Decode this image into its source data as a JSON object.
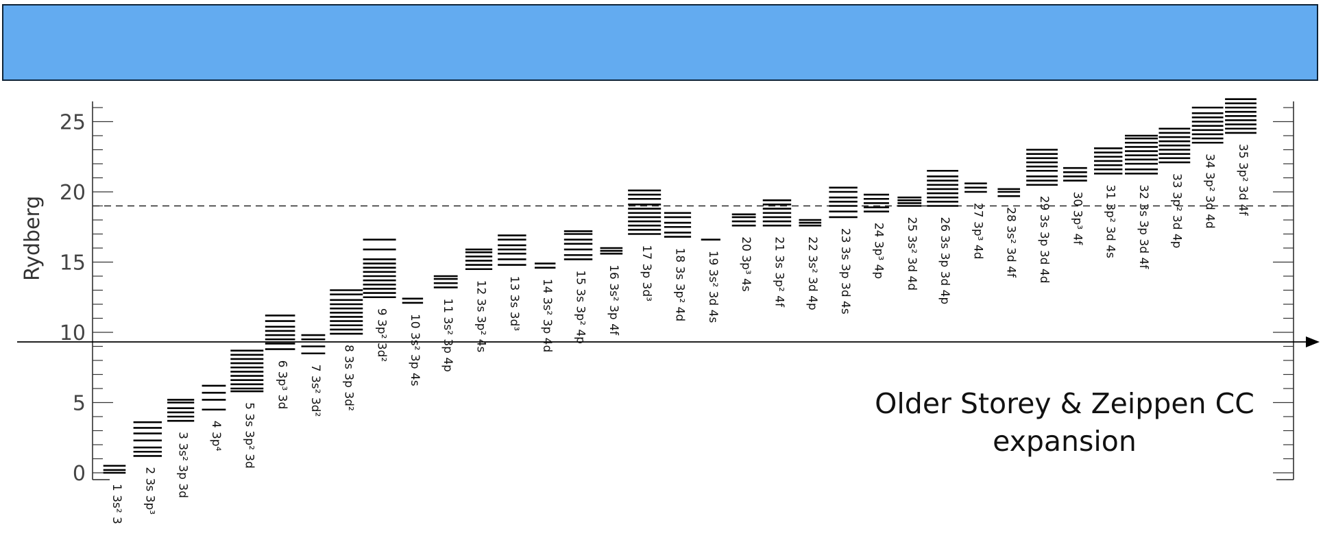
{
  "chart_data": {
    "type": "bar",
    "ylabel": "Rydberg",
    "ylim": [
      -0.5,
      26.5
    ],
    "yticks": [
      0,
      5,
      10,
      15,
      20,
      25
    ],
    "dashed_line_y": 19.0,
    "annotation": [
      "Older Storey & Zeippen CC",
      "expansion"
    ],
    "colors": {
      "banner": "#63abf0",
      "levels": "#000000"
    },
    "configurations": [
      {
        "label": "1 3s² 3",
        "levels": [
          0.0,
          0.2,
          0.5
        ]
      },
      {
        "label": "2 3s 3p³",
        "levels": [
          1.2,
          1.5,
          1.8,
          2.3,
          2.8,
          3.2,
          3.6
        ]
      },
      {
        "label": "3 3s² 3p 3d",
        "levels": [
          3.7,
          4.0,
          4.3,
          4.6,
          5.0,
          5.2
        ]
      },
      {
        "label": "4 3p⁴",
        "levels": [
          4.5,
          5.2,
          5.7,
          6.2
        ]
      },
      {
        "label": "5 3s 3p² 3d",
        "levels": [
          5.8,
          6.0,
          6.3,
          6.6,
          6.9,
          7.2,
          7.5,
          7.8,
          8.1,
          8.4,
          8.7
        ]
      },
      {
        "label": "6 3p³ 3d",
        "levels": [
          8.8,
          9.2,
          9.5,
          9.8,
          10.1,
          10.4,
          10.8,
          11.2
        ]
      },
      {
        "label": "7 3s² 3d²",
        "levels": [
          8.5,
          9.0,
          9.5,
          9.8
        ]
      },
      {
        "label": "8 3s 3p 3d²",
        "levels": [
          9.9,
          10.2,
          10.5,
          10.8,
          11.1,
          11.4,
          11.7,
          12.0,
          12.3,
          12.7,
          13.0
        ]
      },
      {
        "label": "9 3p² 3d²",
        "levels": [
          12.5,
          12.8,
          13.1,
          13.4,
          13.7,
          14.0,
          14.3,
          14.6,
          14.9,
          15.2,
          15.9,
          16.6
        ]
      },
      {
        "label": "10 3s² 3p 4s",
        "levels": [
          12.1,
          12.4
        ]
      },
      {
        "label": "11 3s² 3p 4p",
        "levels": [
          13.2,
          13.5,
          13.8,
          14.0
        ]
      },
      {
        "label": "12 3s 3p² 4s",
        "levels": [
          14.5,
          14.8,
          15.1,
          15.4,
          15.7,
          15.9
        ]
      },
      {
        "label": "13 3s 3d³",
        "levels": [
          14.8,
          15.2,
          15.6,
          15.9,
          16.2,
          16.6,
          16.9
        ]
      },
      {
        "label": "14 3s² 3p 4d",
        "levels": [
          14.6,
          14.9
        ]
      },
      {
        "label": "15 3s 3p² 4p",
        "levels": [
          15.2,
          15.5,
          15.9,
          16.3,
          16.6,
          17.0,
          17.2
        ]
      },
      {
        "label": "16 3s² 3p 4f",
        "levels": [
          15.6,
          15.8,
          16.0
        ]
      },
      {
        "label": "17 3p 3d³",
        "levels": [
          17.0,
          17.3,
          17.6,
          17.9,
          18.2,
          18.5,
          18.8,
          19.1,
          19.5,
          19.8,
          20.1
        ]
      },
      {
        "label": "18 3s 3p² 4d",
        "levels": [
          16.8,
          17.1,
          17.5,
          17.8,
          18.2,
          18.5
        ]
      },
      {
        "label": "19 3s² 3d 4s",
        "levels": [
          16.6
        ]
      },
      {
        "label": "20 3p³ 4s",
        "levels": [
          17.6,
          17.9,
          18.2,
          18.4
        ]
      },
      {
        "label": "21 3s 3p² 4f",
        "levels": [
          17.6,
          17.9,
          18.2,
          18.5,
          18.8,
          19.1,
          19.4
        ]
      },
      {
        "label": "22 3s² 3d 4p",
        "levels": [
          17.6,
          17.8,
          18.0
        ]
      },
      {
        "label": "23 3s 3p 3d 4s",
        "levels": [
          18.2,
          18.6,
          19.0,
          19.3,
          19.6,
          20.0,
          20.3
        ]
      },
      {
        "label": "24 3p³ 4p",
        "levels": [
          18.6,
          18.9,
          19.2,
          19.5,
          19.8
        ]
      },
      {
        "label": "25 3s² 3d 4d",
        "levels": [
          19.0,
          19.2,
          19.4,
          19.6
        ]
      },
      {
        "label": "26 3s 3p 3d 4p",
        "levels": [
          19.0,
          19.3,
          19.6,
          19.9,
          20.2,
          20.5,
          20.8,
          21.1,
          21.5
        ]
      },
      {
        "label": "27 3p³ 4d",
        "levels": [
          20.0,
          20.3,
          20.6
        ]
      },
      {
        "label": "28 3s² 3d 4f",
        "levels": [
          19.7,
          20.0,
          20.2
        ]
      },
      {
        "label": "29 3s 3p 3d 4d",
        "levels": [
          20.5,
          20.8,
          21.1,
          21.5,
          21.8,
          22.1,
          22.4,
          22.7,
          23.0
        ]
      },
      {
        "label": "30 3p³ 4f",
        "levels": [
          20.8,
          21.1,
          21.4,
          21.7
        ]
      },
      {
        "label": "31 3p² 3d 4s",
        "levels": [
          21.3,
          21.6,
          21.9,
          22.2,
          22.5,
          22.8,
          23.1
        ]
      },
      {
        "label": "32 3s 3p 3d 4f",
        "levels": [
          21.3,
          21.6,
          22.0,
          22.3,
          22.6,
          22.9,
          23.2,
          23.5,
          23.8,
          24.0
        ]
      },
      {
        "label": "33 3p² 3d 4p",
        "levels": [
          22.1,
          22.4,
          22.7,
          23.0,
          23.3,
          23.6,
          23.9,
          24.2,
          24.5
        ]
      },
      {
        "label": "34 3p² 3d 4d",
        "levels": [
          23.5,
          23.8,
          24.1,
          24.4,
          24.7,
          25.0,
          25.3,
          25.6,
          26.0
        ]
      },
      {
        "label": "35 3p² 3d 4f",
        "levels": [
          24.2,
          24.5,
          24.8,
          25.1,
          25.4,
          25.7,
          26.0,
          26.3,
          26.6
        ]
      }
    ]
  }
}
